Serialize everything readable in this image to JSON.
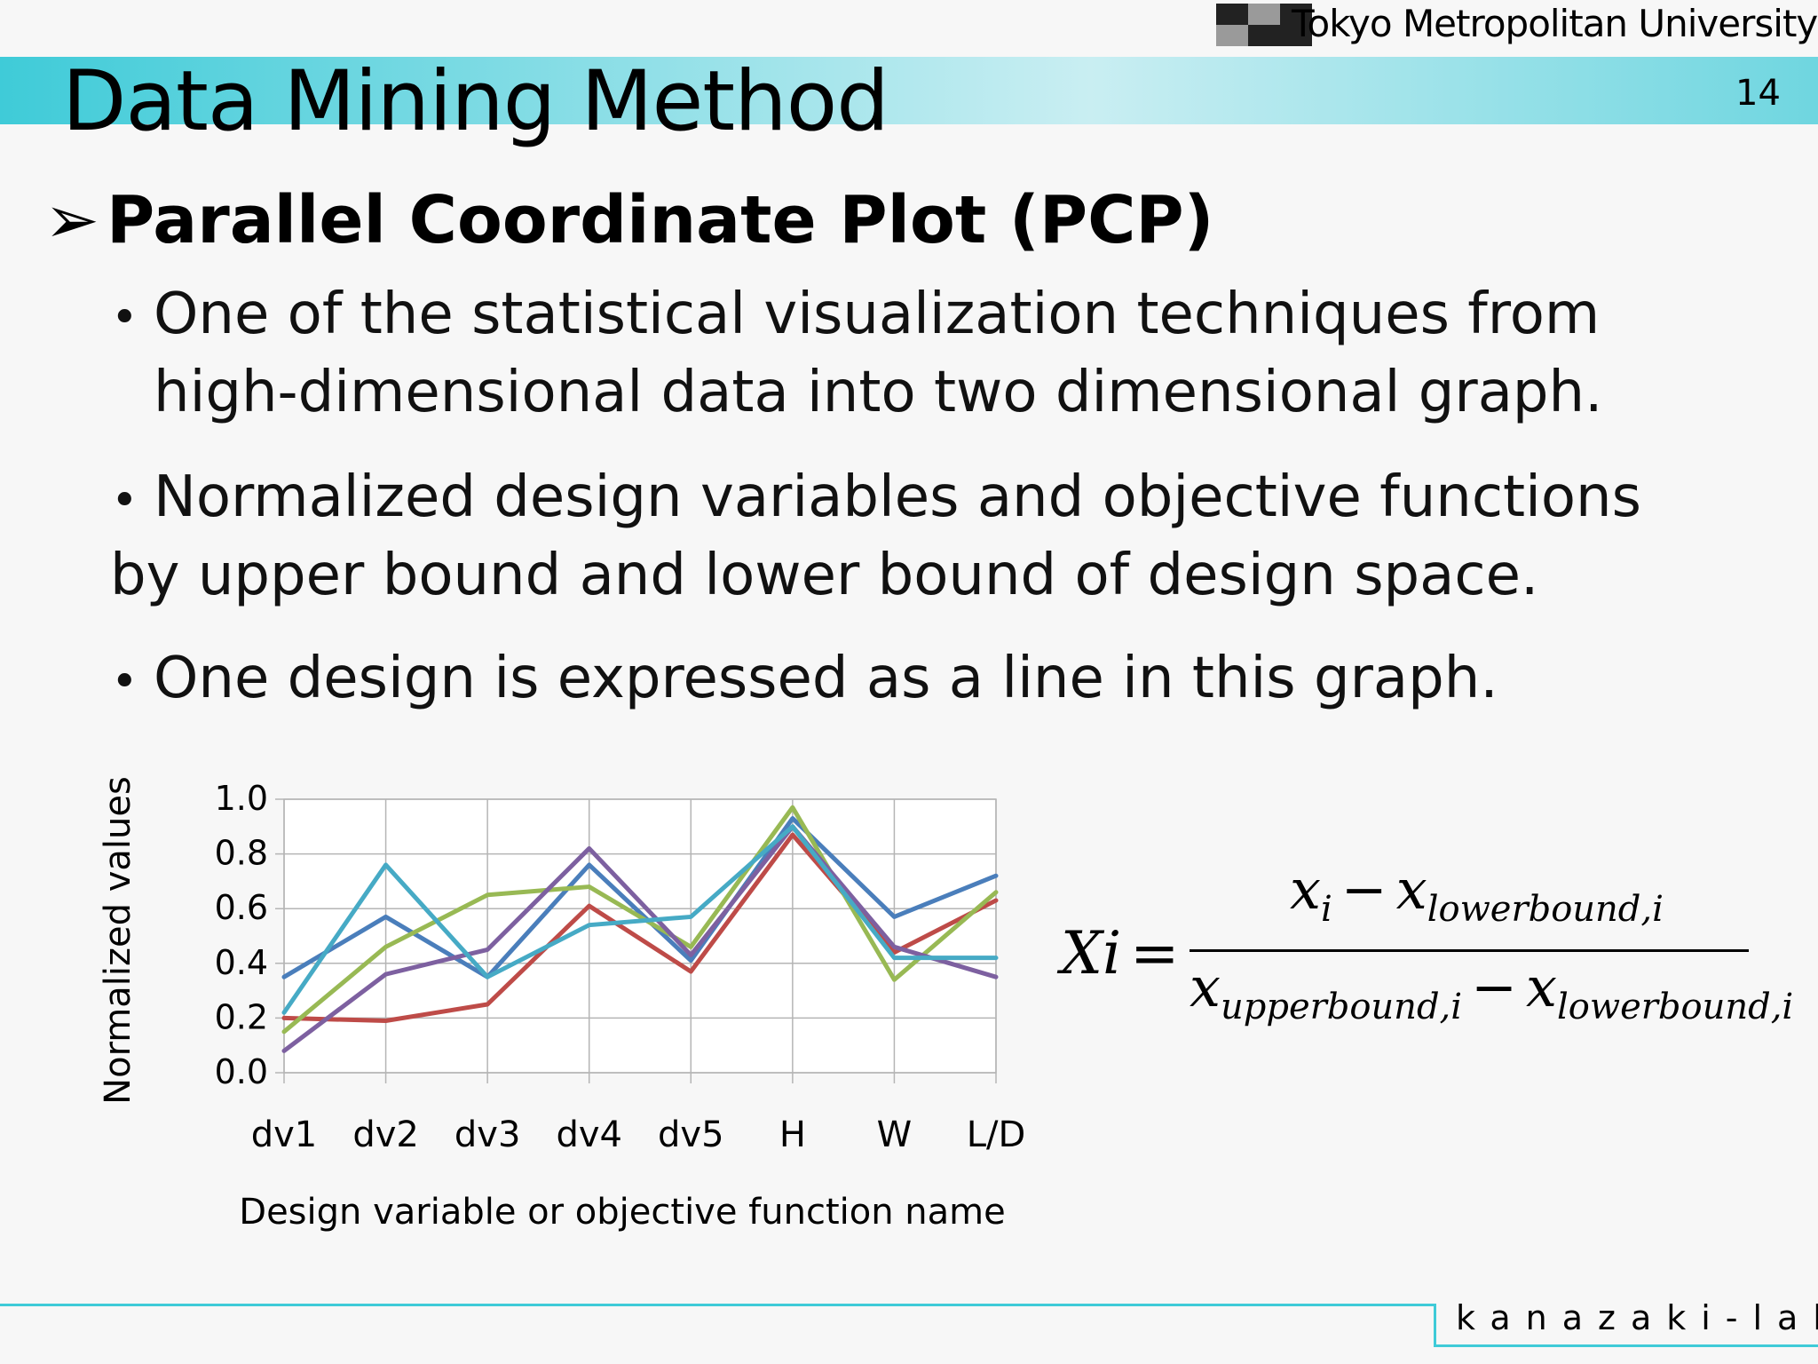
{
  "header": {
    "university": "Tokyo Metropolitan University",
    "page_title": "Data Mining Method",
    "page_number": "14"
  },
  "content": {
    "heading_arrow": "➢",
    "heading": "Parallel Coordinate Plot (PCP)",
    "bullets": [
      {
        "dot": "•",
        "line1": "One of the statistical visualization techniques from",
        "line2": "high-dimensional data into two dimensional graph."
      },
      {
        "dot": "•",
        "line1": "Normalized design variables and objective functions",
        "line2": "by upper bound and lower bound of design space."
      },
      {
        "dot": "•",
        "line1": "One design is expressed as a line in this graph."
      }
    ]
  },
  "chart_data": {
    "type": "line",
    "xlabel": "Design variable or objective function name",
    "ylabel": "Normalized values",
    "categories": [
      "dv1",
      "dv2",
      "dv3",
      "dv4",
      "dv5",
      "H",
      "W",
      "L/D"
    ],
    "ylim": [
      0,
      1.0
    ],
    "yticks": [
      "0.0",
      "0.2",
      "0.4",
      "0.6",
      "0.8",
      "1.0"
    ],
    "grid": true,
    "series": [
      {
        "color": "#4a7ebb",
        "values": [
          0.35,
          0.57,
          0.35,
          0.76,
          0.41,
          0.93,
          0.57,
          0.72
        ]
      },
      {
        "color": "#be4b48",
        "values": [
          0.2,
          0.19,
          0.25,
          0.61,
          0.37,
          0.87,
          0.44,
          0.63
        ]
      },
      {
        "color": "#98b954",
        "values": [
          0.15,
          0.46,
          0.65,
          0.68,
          0.46,
          0.97,
          0.34,
          0.66
        ]
      },
      {
        "color": "#7d60a0",
        "values": [
          0.08,
          0.36,
          0.45,
          0.82,
          0.43,
          0.9,
          0.46,
          0.35
        ]
      },
      {
        "color": "#46aac5",
        "values": [
          0.22,
          0.76,
          0.35,
          0.54,
          0.57,
          0.9,
          0.42,
          0.42
        ]
      }
    ]
  },
  "formula": {
    "lhs": "Xi",
    "equals": "=",
    "minus": "−",
    "num_x": "x",
    "num_x_sub": "i",
    "num_x2": "x",
    "num_x2_sub": "lowerbound,i",
    "den_x": "x",
    "den_x_sub": "upperbound,i",
    "den_x2": "x",
    "den_x2_sub": "lowerbound,i"
  },
  "footer": {
    "lab": "kanazaki-lab"
  },
  "colors": {
    "accent": "#3fcbd8",
    "logo_dark": "#222222",
    "logo_gray": "#9a9a9a"
  }
}
